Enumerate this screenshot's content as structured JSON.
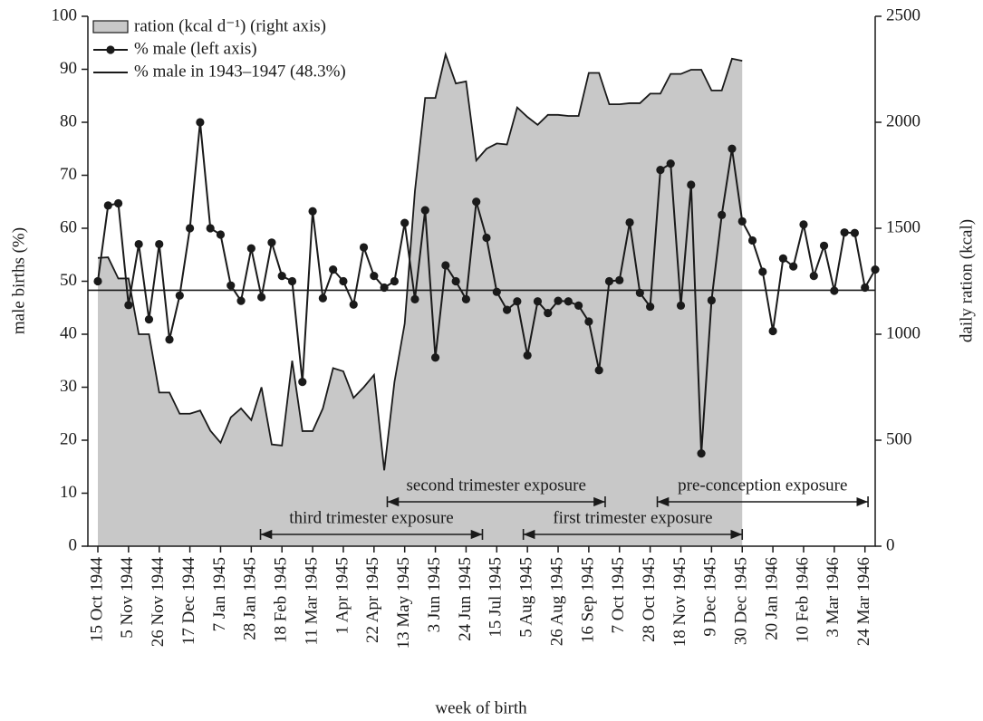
{
  "chart_data": {
    "type": "line",
    "x_label": "week of birth",
    "y_label": "male births (%)",
    "y2_label": "daily ration (kcal)",
    "categories": [
      "15 Oct 1944",
      null,
      null,
      "5 Nov 1944",
      null,
      null,
      "26 Nov 1944",
      null,
      null,
      "17 Dec 1944",
      null,
      null,
      "7 Jan 1945",
      null,
      null,
      "28 Jan 1945",
      null,
      null,
      "18 Feb 1945",
      null,
      null,
      "11 Mar 1945",
      null,
      null,
      "1 Apr 1945",
      null,
      null,
      "22 Apr 1945",
      null,
      null,
      "13 May 1945",
      null,
      null,
      "3 Jun 1945",
      null,
      null,
      "24 Jun 1945",
      null,
      null,
      "15 Jul 1945",
      null,
      null,
      "5 Aug 1945",
      null,
      null,
      "26 Aug 1945",
      null,
      null,
      "16 Sep 1945",
      null,
      null,
      "7 Oct 1945",
      null,
      null,
      "28 Oct 1945",
      null,
      null,
      "18 Nov 1945",
      null,
      null,
      "9 Dec 1945",
      null,
      null,
      "30 Dec 1945",
      null,
      null,
      "20 Jan 1946",
      null,
      null,
      "10 Feb 1946",
      null,
      null,
      "3 Mar 1946",
      null,
      null,
      "24 Mar 1946",
      null
    ],
    "series": [
      {
        "name": "ration (kcal d⁻¹) (right axis)",
        "type": "area",
        "axis": "y2",
        "color": "#c8c8c8",
        "values": [
          1360,
          1363,
          1263,
          1263,
          1000,
          1000,
          725,
          725,
          625,
          625,
          640,
          545,
          488,
          608,
          650,
          595,
          750,
          480,
          475,
          875,
          543,
          543,
          650,
          840,
          825,
          700,
          750,
          808,
          358,
          775,
          1050,
          1675,
          2115,
          2115,
          2320,
          2183,
          2193,
          1820,
          1875,
          1900,
          1895,
          2070,
          2025,
          1988,
          2035,
          2035,
          2030,
          2030,
          2233,
          2233,
          2085,
          2085,
          2090,
          2090,
          2135,
          2135,
          2228,
          2228,
          2248,
          2248,
          2150,
          2150,
          2300,
          2290,
          null,
          null,
          null,
          null,
          null,
          null,
          null,
          null,
          null,
          null,
          null,
          null,
          null
        ]
      },
      {
        "name": "% male (left axis)",
        "type": "line",
        "color": "#1a1a1a",
        "values": [
          50,
          64.3,
          64.7,
          45.5,
          57,
          42.8,
          57,
          39,
          47.3,
          60,
          80,
          60,
          58.8,
          49.2,
          46.3,
          56.2,
          47,
          57.3,
          51,
          50,
          31,
          63.2,
          46.8,
          52.2,
          50,
          45.6,
          56.4,
          51,
          48.8,
          50,
          61,
          46.6,
          63.4,
          35.6,
          53,
          50,
          46.6,
          65,
          58.2,
          48,
          44.6,
          46.2,
          36,
          46.2,
          44,
          46.3,
          46.2,
          45.4,
          42.4,
          33.2,
          50,
          50.2,
          61.1,
          47.8,
          45.2,
          71,
          72.2,
          45.4,
          68.2,
          17.5,
          46.4,
          62.5,
          75,
          61.3,
          57.7,
          51.8,
          40.6,
          54.3,
          52.8,
          60.7,
          51,
          56.7,
          48.2,
          59.2,
          59.1,
          48.8,
          52.2
        ]
      }
    ],
    "reference_line": {
      "name": "% male in 1943–1947 (48.3%)",
      "value": 48.3,
      "color": "#1a1a1a"
    },
    "annotations": [
      {
        "text": "second trimester exposure"
      },
      {
        "text": "pre-conception exposure"
      },
      {
        "text": "third trimester exposure"
      },
      {
        "text": "first trimester exposure"
      }
    ],
    "ylim": [
      0,
      100
    ],
    "yticks": [
      0,
      10,
      20,
      30,
      40,
      50,
      60,
      70,
      80,
      90,
      100
    ],
    "y2lim": [
      0,
      2500
    ],
    "y2ticks": [
      0,
      500,
      1000,
      1500,
      2000,
      2500
    ],
    "grid": false,
    "legend": "top-left"
  }
}
